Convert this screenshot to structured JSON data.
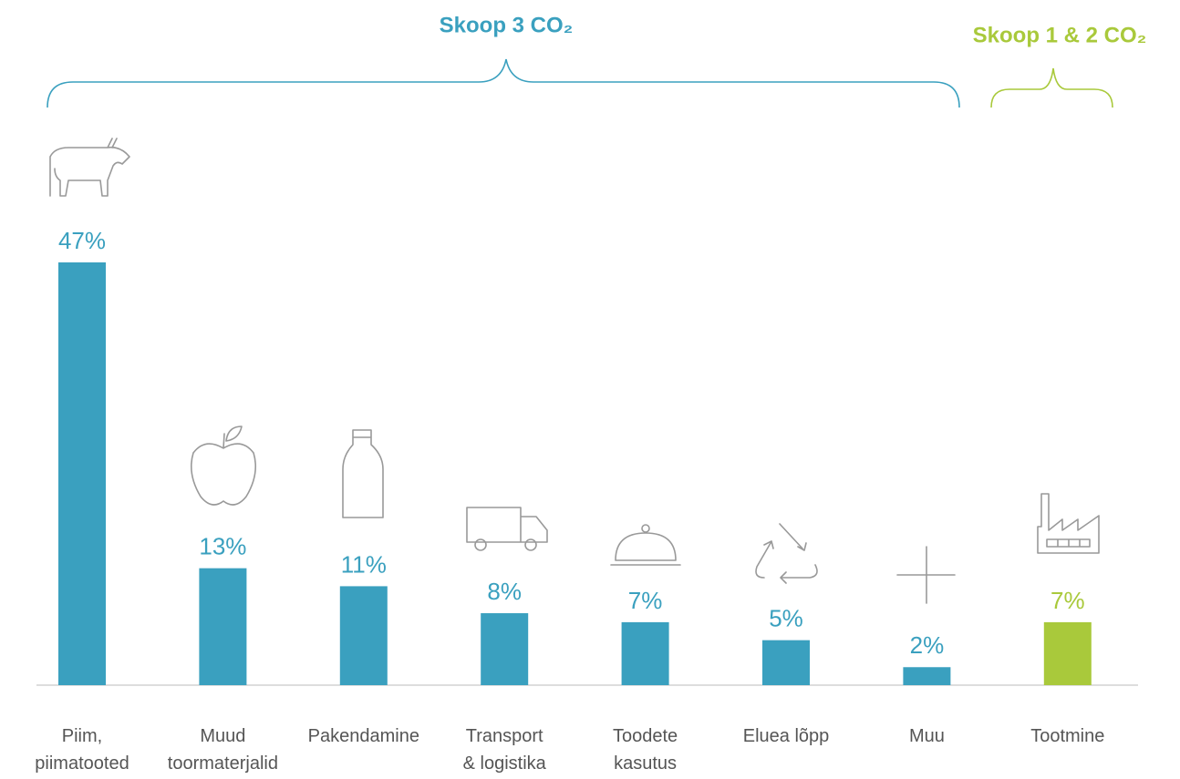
{
  "chart_data": {
    "type": "bar",
    "annotations": [
      "Skoop 3 CO₂",
      "Skoop 1 & 2 CO₂"
    ],
    "categories": [
      "Piim,\npiimatooted",
      "Muud\ntoormaterjalid",
      "Pakendamine",
      "Transport\n& logistika",
      "Toodete\nkasutus",
      "Eluea lõpp",
      "Muu",
      "Tootmine"
    ],
    "values": [
      47,
      13,
      11,
      8,
      7,
      5,
      2,
      7
    ],
    "value_labels": [
      "47%",
      "13%",
      "11%",
      "8%",
      "7%",
      "5%",
      "2%",
      "7%"
    ],
    "colors": [
      "#3aa0bf",
      "#3aa0bf",
      "#3aa0bf",
      "#3aa0bf",
      "#3aa0bf",
      "#3aa0bf",
      "#3aa0bf",
      "#a9c93b"
    ],
    "ylim": [
      0,
      47
    ]
  }
}
